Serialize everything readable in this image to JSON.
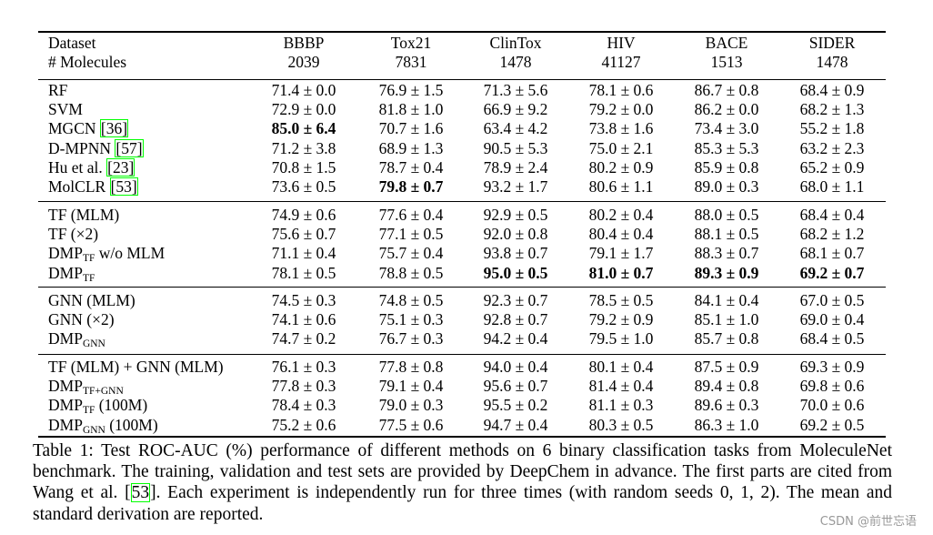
{
  "columns": [
    {
      "name": "Dataset"
    },
    {
      "name": "BBBP",
      "count": "2039"
    },
    {
      "name": "Tox21",
      "count": "7831"
    },
    {
      "name": "ClinTox",
      "count": "1478"
    },
    {
      "name": "HIV",
      "count": "41127"
    },
    {
      "name": "BACE",
      "count": "1513"
    },
    {
      "name": "SIDER",
      "count": "1478"
    }
  ],
  "row_header_sub": "# Molecules",
  "groups": [
    [
      {
        "m": "RF",
        "v": [
          "71.4 ± 0.0",
          "76.9 ± 1.5",
          "71.3 ± 5.6",
          "78.1 ± 0.6",
          "86.7 ± 0.8",
          "68.4 ± 0.9"
        ]
      },
      {
        "m": "SVM",
        "v": [
          "72.9 ± 0.0",
          "81.8 ± 1.0",
          "66.9 ± 9.2",
          "79.2 ± 0.0",
          "86.2 ± 0.0",
          "68.2 ± 1.3"
        ]
      },
      {
        "m": "MGCN",
        "cite": "36",
        "v": [
          "85.0 ± 6.4",
          "70.7 ± 1.6",
          "63.4 ± 4.2",
          "73.8 ± 1.6",
          "73.4 ± 3.0",
          "55.2 ± 1.8"
        ],
        "bold": [
          0
        ]
      },
      {
        "m": "D-MPNN",
        "cite": "57",
        "v": [
          "71.2 ± 3.8",
          "68.9 ± 1.3",
          "90.5 ± 5.3",
          "75.0 ± 2.1",
          "85.3 ± 5.3",
          "63.2 ± 2.3"
        ]
      },
      {
        "m": "Hu et al.",
        "cite": "23",
        "v": [
          "70.8 ± 1.5",
          "78.7 ± 0.4",
          "78.9 ± 2.4",
          "80.2 ± 0.9",
          "85.9 ± 0.8",
          "65.2 ± 0.9"
        ]
      },
      {
        "m": "MolCLR",
        "cite": "53",
        "v": [
          "73.6 ± 0.5",
          "79.8 ± 0.7",
          "93.2 ± 1.7",
          "80.6 ± 1.1",
          "89.0 ± 0.3",
          "68.0 ± 1.1"
        ],
        "bold": [
          1
        ]
      }
    ],
    [
      {
        "m": "TF (MLM)",
        "v": [
          "74.9 ± 0.6",
          "77.6 ± 0.4",
          "92.9 ± 0.5",
          "80.2 ± 0.4",
          "88.0 ± 0.5",
          "68.4 ± 0.4"
        ]
      },
      {
        "m": "TF (×2)",
        "v": [
          "75.6 ± 0.7",
          "77.1 ± 0.5",
          "92.0 ± 0.8",
          "80.4 ± 0.4",
          "88.1 ± 0.5",
          "68.2 ± 1.2"
        ]
      },
      {
        "m": "DMP",
        "sub": "TF",
        "tail": " w/o MLM",
        "v": [
          "71.1 ± 0.4",
          "75.7 ± 0.4",
          "93.8 ± 0.7",
          "79.1 ± 1.7",
          "88.3 ± 0.7",
          "68.1 ± 0.7"
        ]
      },
      {
        "m": "DMP",
        "sub": "TF",
        "v": [
          "78.1 ± 0.5",
          "78.8 ± 0.5",
          "95.0 ± 0.5",
          "81.0 ± 0.7",
          "89.3 ± 0.9",
          "69.2 ± 0.7"
        ],
        "bold": [
          2,
          3,
          4,
          5
        ]
      }
    ],
    [
      {
        "m": "GNN (MLM)",
        "v": [
          "74.5 ± 0.3",
          "74.8 ± 0.5",
          "92.3 ± 0.7",
          "78.5 ± 0.5",
          "84.1 ± 0.4",
          "67.0 ± 0.5"
        ]
      },
      {
        "m": "GNN (×2)",
        "v": [
          "74.1 ± 0.6",
          "75.1 ± 0.3",
          "92.8 ± 0.7",
          "79.2 ± 0.9",
          "85.1 ± 1.0",
          "69.0 ± 0.4"
        ]
      },
      {
        "m": "DMP",
        "sub": "GNN",
        "v": [
          "74.7 ± 0.2",
          "76.7 ± 0.3",
          "94.2 ± 0.4",
          "79.5 ± 1.0",
          "85.7 ± 0.8",
          "68.4 ± 0.5"
        ]
      }
    ],
    [
      {
        "m": "TF (MLM) + GNN (MLM)",
        "v": [
          "76.1 ± 0.3",
          "77.8 ± 0.8",
          "94.0 ± 0.4",
          "80.1 ± 0.4",
          "87.5 ± 0.9",
          "69.3 ± 0.9"
        ]
      },
      {
        "m": "DMP",
        "sub": "TF+GNN",
        "v": [
          "77.8 ± 0.3",
          "79.1 ± 0.4",
          "95.6 ± 0.7",
          "81.4 ± 0.4",
          "89.4 ± 0.8",
          "69.8 ± 0.6"
        ]
      },
      {
        "m": "DMP",
        "sub": "TF",
        "tail": " (100M)",
        "v": [
          "78.4 ± 0.3",
          "79.0 ± 0.3",
          "95.5 ± 0.2",
          "81.1 ± 0.3",
          "89.6 ± 0.3",
          "70.0 ± 0.6"
        ]
      },
      {
        "m": "DMP",
        "sub": "GNN",
        "tail": " (100M)",
        "v": [
          "75.2 ± 0.6",
          "77.5 ± 0.6",
          "94.7 ± 0.4",
          "80.3 ± 0.5",
          "86.3 ± 1.0",
          "69.2 ± 0.5"
        ]
      }
    ]
  ],
  "caption": {
    "part1": "Table 1: Test ROC-AUC (%) performance of different methods on 6 binary classification tasks from MoleculeNet benchmark. The training, validation and test sets are provided by DeepChem in advance. The first parts are cited from Wang et al. [",
    "cite": "53",
    "part2": "]. Each experiment is independently run for three times (with random seeds 0, 1, 2). The mean and standard derivation are reported."
  },
  "watermark": "CSDN @前世忘语"
}
